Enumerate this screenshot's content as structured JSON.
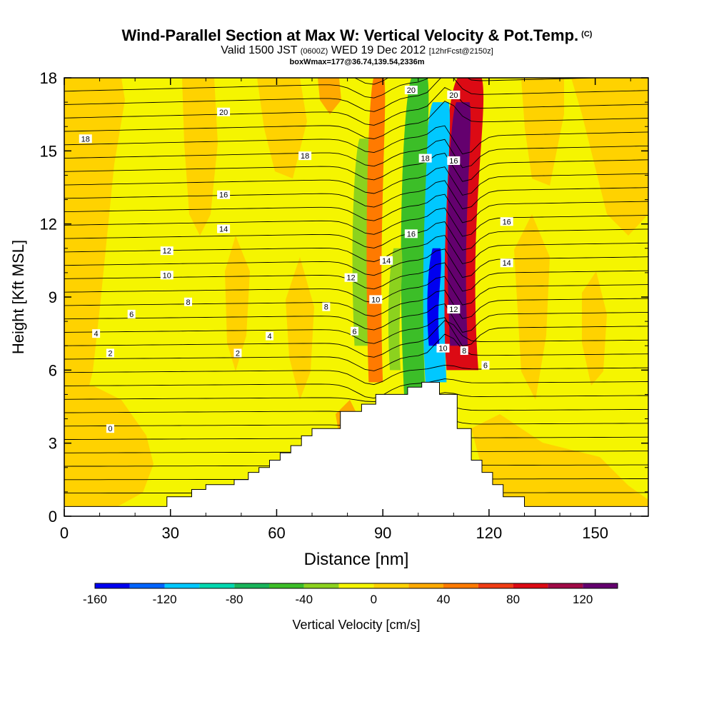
{
  "title": {
    "main": "Wind-Parallel Section at Max W: Vertical Velocity & Pot.Temp.",
    "copyright": "(C)",
    "valid_prefix": "Valid 1500 JST",
    "valid_utc": "(0600Z)",
    "valid_date": "WED 19 Dec 2012",
    "valid_forecast": "[12hrFcst@2150z]",
    "box": "boxWmax=177@36.74,139.54,2336m"
  },
  "chart_data": {
    "type": "heatmap",
    "xlabel": "Distance [nm]",
    "ylabel": "Height [Kft MSL]",
    "xlim": [
      0,
      165
    ],
    "ylim": [
      0,
      18
    ],
    "x_ticks": [
      "0",
      "30",
      "60",
      "90",
      "120",
      "150"
    ],
    "x_tick_values": [
      0,
      30,
      60,
      90,
      120,
      150
    ],
    "y_ticks": [
      "0",
      "3",
      "6",
      "9",
      "12",
      "15",
      "18"
    ],
    "y_tick_values": [
      0,
      3,
      6,
      9,
      12,
      15,
      18
    ],
    "colorbar": {
      "label": "Vertical Velocity [cm/s]",
      "ticks": [
        "-160",
        "-120",
        "-80",
        "-40",
        "0",
        "40",
        "80",
        "120"
      ],
      "tick_values": [
        -160,
        -120,
        -80,
        -40,
        0,
        40,
        80,
        120
      ],
      "bounds": [
        -160,
        -140,
        -120,
        -100,
        -80,
        -60,
        -40,
        -20,
        0,
        20,
        40,
        60,
        80,
        100,
        120,
        140
      ],
      "colors": [
        "#0000f0",
        "#0064ff",
        "#00c8ff",
        "#00d8b0",
        "#18b45a",
        "#3cbe28",
        "#8cd21e",
        "#f5f500",
        "#ffd200",
        "#ffaa00",
        "#ff7a00",
        "#f03c14",
        "#dc0a14",
        "#a00a46",
        "#64006e"
      ]
    },
    "regions": [
      {
        "x": [
          108,
          117
        ],
        "y": [
          6,
          18
        ],
        "value": 80
      },
      {
        "x": [
          109,
          114
        ],
        "y": [
          7,
          17
        ],
        "value": 120
      },
      {
        "x": [
          102,
          108
        ],
        "y": [
          5.5,
          17
        ],
        "value": -120
      },
      {
        "x": [
          103,
          106
        ],
        "y": [
          7,
          11
        ],
        "value": -160
      },
      {
        "x": [
          96,
          102
        ],
        "y": [
          5,
          18
        ],
        "value": -60
      },
      {
        "x": [
          82,
          86
        ],
        "y": [
          7,
          15.5
        ],
        "value": -40
      },
      {
        "x": [
          86,
          90
        ],
        "y": [
          5.5,
          18
        ],
        "value": 40
      },
      {
        "x": [
          92,
          95
        ],
        "y": [
          6,
          11
        ],
        "value": -40
      }
    ],
    "terrain": {
      "x": [
        0,
        29,
        29,
        36,
        36,
        40,
        40,
        48,
        48,
        52,
        52,
        55,
        55,
        58,
        58,
        61,
        61,
        64,
        64,
        67,
        67,
        70,
        70,
        78,
        78,
        84,
        84,
        88,
        88,
        97,
        97,
        101,
        101,
        106,
        106,
        111,
        111,
        115,
        115,
        118,
        118,
        121,
        121,
        124,
        124,
        130,
        130,
        156,
        156,
        165
      ],
      "y": [
        0.4,
        0.4,
        0.8,
        0.8,
        1.1,
        1.1,
        1.3,
        1.3,
        1.5,
        1.5,
        1.8,
        1.8,
        2.0,
        2.0,
        2.3,
        2.3,
        2.6,
        2.6,
        2.9,
        2.9,
        3.3,
        3.3,
        3.6,
        3.6,
        4.3,
        4.3,
        4.6,
        4.6,
        5.0,
        5.0,
        5.3,
        5.3,
        5.5,
        5.5,
        5.0,
        5.0,
        3.6,
        3.6,
        2.3,
        2.3,
        1.8,
        1.8,
        1.3,
        1.3,
        0.8,
        0.8,
        0.4,
        0.4,
        0.4,
        0.4
      ]
    },
    "contour_labels": [
      {
        "text": "20",
        "x": 45,
        "y": 16.6
      },
      {
        "text": "18",
        "x": 6,
        "y": 15.5
      },
      {
        "text": "18",
        "x": 68,
        "y": 14.8
      },
      {
        "text": "16",
        "x": 45,
        "y": 13.2
      },
      {
        "text": "14",
        "x": 45,
        "y": 11.8
      },
      {
        "text": "12",
        "x": 29,
        "y": 10.9
      },
      {
        "text": "10",
        "x": 29,
        "y": 9.9
      },
      {
        "text": "8",
        "x": 35,
        "y": 8.8
      },
      {
        "text": "8",
        "x": 74,
        "y": 8.6
      },
      {
        "text": "6",
        "x": 19,
        "y": 8.3
      },
      {
        "text": "4",
        "x": 9,
        "y": 7.5
      },
      {
        "text": "4",
        "x": 58,
        "y": 7.4
      },
      {
        "text": "2",
        "x": 13,
        "y": 6.7
      },
      {
        "text": "2",
        "x": 49,
        "y": 6.7
      },
      {
        "text": "0",
        "x": 13,
        "y": 3.6
      },
      {
        "text": "12",
        "x": 81,
        "y": 9.8
      },
      {
        "text": "10",
        "x": 88,
        "y": 8.9
      },
      {
        "text": "14",
        "x": 91,
        "y": 10.5
      },
      {
        "text": "16",
        "x": 98,
        "y": 11.6
      },
      {
        "text": "6",
        "x": 82,
        "y": 7.6
      },
      {
        "text": "20",
        "x": 98,
        "y": 17.5
      },
      {
        "text": "20",
        "x": 110,
        "y": 17.3
      },
      {
        "text": "18",
        "x": 102,
        "y": 14.7
      },
      {
        "text": "16",
        "x": 110,
        "y": 14.6
      },
      {
        "text": "16",
        "x": 125,
        "y": 12.1
      },
      {
        "text": "14",
        "x": 125,
        "y": 10.4
      },
      {
        "text": "12",
        "x": 110,
        "y": 8.5
      },
      {
        "text": "10",
        "x": 107,
        "y": 6.9
      },
      {
        "text": "8",
        "x": 113,
        "y": 6.8
      },
      {
        "text": "6",
        "x": 119,
        "y": 6.2
      }
    ]
  }
}
